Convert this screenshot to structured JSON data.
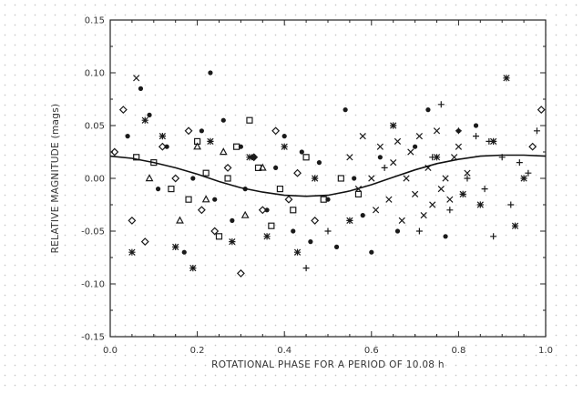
{
  "chart_data": {
    "type": "scatter",
    "title": "",
    "xlabel": "ROTATIONAL PHASE FOR A PERIOD OF 10.08 h",
    "ylabel": "RELATIVE MAGNITUDE (mags)",
    "xlim": [
      0.0,
      1.0
    ],
    "ylim": [
      -0.15,
      0.15
    ],
    "x_ticks": [
      "0.0",
      "0.2",
      "0.4",
      "0.6",
      "0.8",
      "1.0"
    ],
    "y_ticks": [
      "-0.15",
      "-0.10",
      "-0.05",
      "0.00",
      "0.05",
      "0.10",
      "0.15"
    ],
    "grid": false,
    "legend": "none",
    "colors": {
      "frame": "#222222",
      "points": "#1a1a1a",
      "curve": "#111111"
    },
    "series": [
      {
        "marker": "filled-circle",
        "x": [
          0.04,
          0.07,
          0.09,
          0.11,
          0.13,
          0.17,
          0.19,
          0.21,
          0.23,
          0.24,
          0.26,
          0.28,
          0.3,
          0.31,
          0.33,
          0.36,
          0.38,
          0.4,
          0.42,
          0.44,
          0.46,
          0.48,
          0.5,
          0.52,
          0.54,
          0.56,
          0.58,
          0.6,
          0.62,
          0.66,
          0.7,
          0.73,
          0.77,
          0.8,
          0.84
        ],
        "y": [
          0.04,
          0.085,
          0.06,
          -0.01,
          0.03,
          -0.07,
          0.0,
          0.045,
          0.1,
          -0.02,
          0.055,
          -0.04,
          0.03,
          -0.01,
          0.02,
          -0.03,
          0.01,
          0.04,
          -0.05,
          0.025,
          -0.06,
          0.015,
          -0.02,
          -0.065,
          0.065,
          0.0,
          -0.035,
          -0.07,
          0.02,
          -0.05,
          0.03,
          0.065,
          -0.055,
          0.045,
          0.05
        ]
      },
      {
        "marker": "open-square",
        "x": [
          0.06,
          0.1,
          0.14,
          0.18,
          0.2,
          0.22,
          0.25,
          0.27,
          0.29,
          0.32,
          0.34,
          0.37,
          0.39,
          0.42,
          0.45,
          0.49,
          0.53,
          0.57
        ],
        "y": [
          0.02,
          0.015,
          -0.01,
          -0.02,
          0.035,
          0.005,
          -0.055,
          0.0,
          0.03,
          0.055,
          0.01,
          -0.045,
          -0.01,
          -0.03,
          0.02,
          -0.02,
          0.0,
          -0.015
        ]
      },
      {
        "marker": "open-diamond",
        "x": [
          0.01,
          0.03,
          0.05,
          0.08,
          0.12,
          0.15,
          0.18,
          0.21,
          0.24,
          0.27,
          0.3,
          0.33,
          0.35,
          0.38,
          0.41,
          0.43,
          0.47,
          0.99,
          0.97
        ],
        "y": [
          0.025,
          0.065,
          -0.04,
          -0.06,
          0.03,
          0.0,
          0.045,
          -0.03,
          -0.05,
          0.01,
          -0.09,
          0.02,
          -0.03,
          0.045,
          -0.02,
          0.005,
          -0.04,
          0.065,
          0.03
        ]
      },
      {
        "marker": "open-triangle",
        "x": [
          0.09,
          0.16,
          0.2,
          0.22,
          0.26,
          0.31,
          0.35
        ],
        "y": [
          0.0,
          -0.04,
          0.03,
          -0.02,
          0.025,
          -0.035,
          0.01
        ]
      },
      {
        "marker": "x-cross",
        "x": [
          0.06,
          0.55,
          0.57,
          0.58,
          0.6,
          0.61,
          0.62,
          0.64,
          0.65,
          0.66,
          0.67,
          0.68,
          0.69,
          0.7,
          0.71,
          0.72,
          0.73,
          0.74,
          0.75,
          0.76,
          0.77,
          0.78,
          0.79,
          0.8,
          0.82
        ],
        "y": [
          0.095,
          0.02,
          -0.01,
          0.04,
          0.0,
          -0.03,
          0.03,
          -0.02,
          0.015,
          0.035,
          -0.04,
          0.0,
          0.025,
          -0.015,
          0.04,
          -0.035,
          0.01,
          -0.025,
          0.045,
          -0.01,
          0.0,
          -0.02,
          0.02,
          0.03,
          0.005
        ]
      },
      {
        "marker": "plus",
        "x": [
          0.45,
          0.5,
          0.63,
          0.71,
          0.74,
          0.76,
          0.78,
          0.8,
          0.82,
          0.84,
          0.86,
          0.87,
          0.88,
          0.9,
          0.92,
          0.94,
          0.96,
          0.98
        ],
        "y": [
          -0.085,
          -0.05,
          0.01,
          -0.05,
          0.02,
          0.07,
          -0.03,
          0.045,
          0.0,
          0.04,
          -0.01,
          0.035,
          -0.055,
          0.02,
          -0.025,
          0.015,
          0.005,
          0.045
        ]
      },
      {
        "marker": "asterisk",
        "x": [
          0.05,
          0.08,
          0.12,
          0.15,
          0.19,
          0.23,
          0.28,
          0.32,
          0.36,
          0.4,
          0.43,
          0.47,
          0.55,
          0.65,
          0.75,
          0.81,
          0.85,
          0.88,
          0.91,
          0.93,
          0.95
        ],
        "y": [
          -0.07,
          0.055,
          0.04,
          -0.065,
          -0.085,
          0.035,
          -0.06,
          0.02,
          -0.055,
          0.03,
          -0.07,
          0.0,
          -0.04,
          0.05,
          0.02,
          -0.015,
          -0.025,
          0.035,
          0.095,
          -0.045,
          0.0
        ]
      }
    ],
    "curve": {
      "name": "",
      "x": [
        0.0,
        0.05,
        0.1,
        0.15,
        0.2,
        0.25,
        0.3,
        0.35,
        0.4,
        0.45,
        0.5,
        0.55,
        0.6,
        0.65,
        0.7,
        0.75,
        0.8,
        0.85,
        0.9,
        0.95,
        1.0
      ],
      "y": [
        0.021,
        0.019,
        0.015,
        0.01,
        0.004,
        -0.003,
        -0.009,
        -0.013,
        -0.016,
        -0.017,
        -0.016,
        -0.012,
        -0.006,
        0.001,
        0.008,
        0.014,
        0.018,
        0.021,
        0.022,
        0.022,
        0.021
      ]
    }
  }
}
